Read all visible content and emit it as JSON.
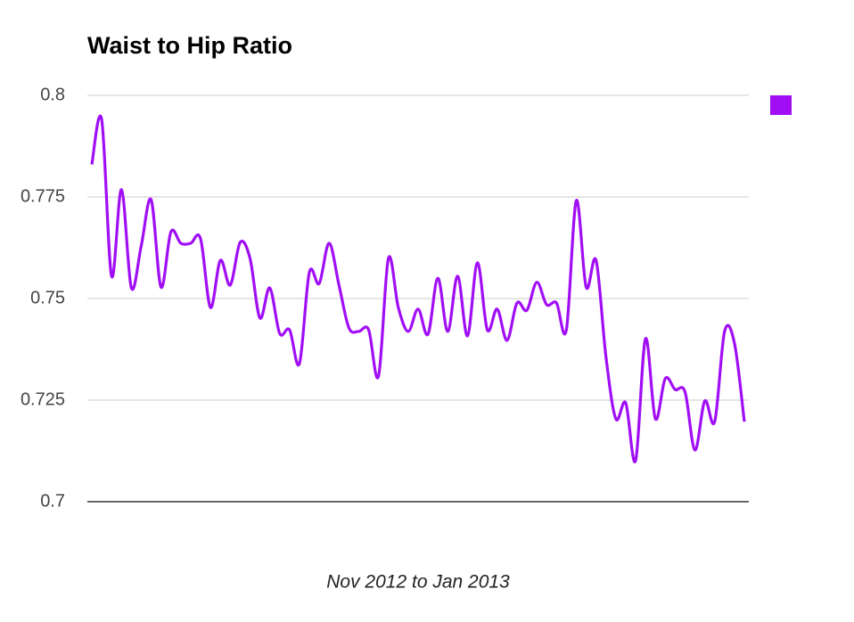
{
  "chart_data": {
    "type": "line",
    "title": "Waist to Hip Ratio",
    "xlabel": "Nov 2012 to Jan 2013",
    "categories": [
      null,
      null,
      null,
      null,
      null,
      null,
      null,
      null,
      null,
      null,
      null,
      null,
      null,
      null,
      null,
      null,
      null,
      null,
      null,
      null,
      null,
      null,
      null,
      null,
      null,
      null,
      null,
      null,
      null,
      null,
      null,
      null,
      null,
      null,
      null,
      null,
      null,
      null,
      null,
      null,
      null,
      null,
      null,
      null,
      null,
      null,
      null,
      null,
      null,
      null,
      null,
      null,
      null,
      null,
      null,
      null,
      null,
      null,
      null,
      null,
      null,
      null,
      null,
      null,
      null,
      null,
      null
    ],
    "series": [
      {
        "color": "#a10ef5",
        "values": [
          0.783,
          0.794,
          0.7555,
          0.7768,
          0.7526,
          0.763,
          0.7743,
          0.7528,
          0.7664,
          0.7636,
          0.7636,
          0.7647,
          0.7478,
          0.7594,
          0.7533,
          0.7638,
          0.7599,
          0.7452,
          0.7526,
          0.7414,
          0.7423,
          0.734,
          0.7564,
          0.7537,
          0.7636,
          0.7533,
          0.7428,
          0.7419,
          0.7423,
          0.7309,
          0.7599,
          0.7478,
          0.7419,
          0.7474,
          0.7412,
          0.755,
          0.7419,
          0.7555,
          0.7408,
          0.7588,
          0.7423,
          0.7474,
          0.7397,
          0.7489,
          0.7471,
          0.754,
          0.7485,
          0.7489,
          0.7423,
          0.7741,
          0.7528,
          0.7594,
          0.7357,
          0.7204,
          0.7243,
          0.7101,
          0.7401,
          0.7204,
          0.7303,
          0.7276,
          0.727,
          0.7127,
          0.7248,
          0.7197,
          0.7419,
          0.739,
          0.7197
        ]
      }
    ],
    "ylim": [
      0.7,
      0.8
    ],
    "yticks": [
      0.7,
      0.725,
      0.75,
      0.775,
      0.8
    ],
    "grid": true,
    "legend": "right"
  }
}
